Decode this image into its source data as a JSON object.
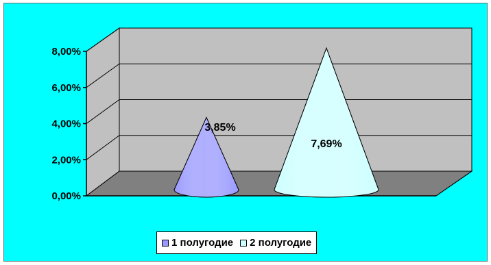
{
  "chart_data": {
    "type": "bar",
    "style": "3d-cone",
    "categories": [
      ""
    ],
    "series": [
      {
        "name": "1 полугодие",
        "values": [
          0.0385
        ],
        "label": "3,85%",
        "color": "#9999ff"
      },
      {
        "name": "2 полугодие",
        "values": [
          0.0769
        ],
        "label": "7,69%",
        "color": "#ccffff"
      }
    ],
    "ylim": [
      0,
      0.08
    ],
    "yticks": [
      "0,00%",
      "2,00%",
      "4,00%",
      "6,00%",
      "8,00%"
    ],
    "grid": true,
    "legend_position": "bottom",
    "title": "",
    "xlabel": "",
    "ylabel": ""
  },
  "colors": {
    "chart_area": "#00ffff",
    "back_wall": "#c0c0c0",
    "side_wall": "#c0c0c0",
    "floor": "#808080"
  }
}
